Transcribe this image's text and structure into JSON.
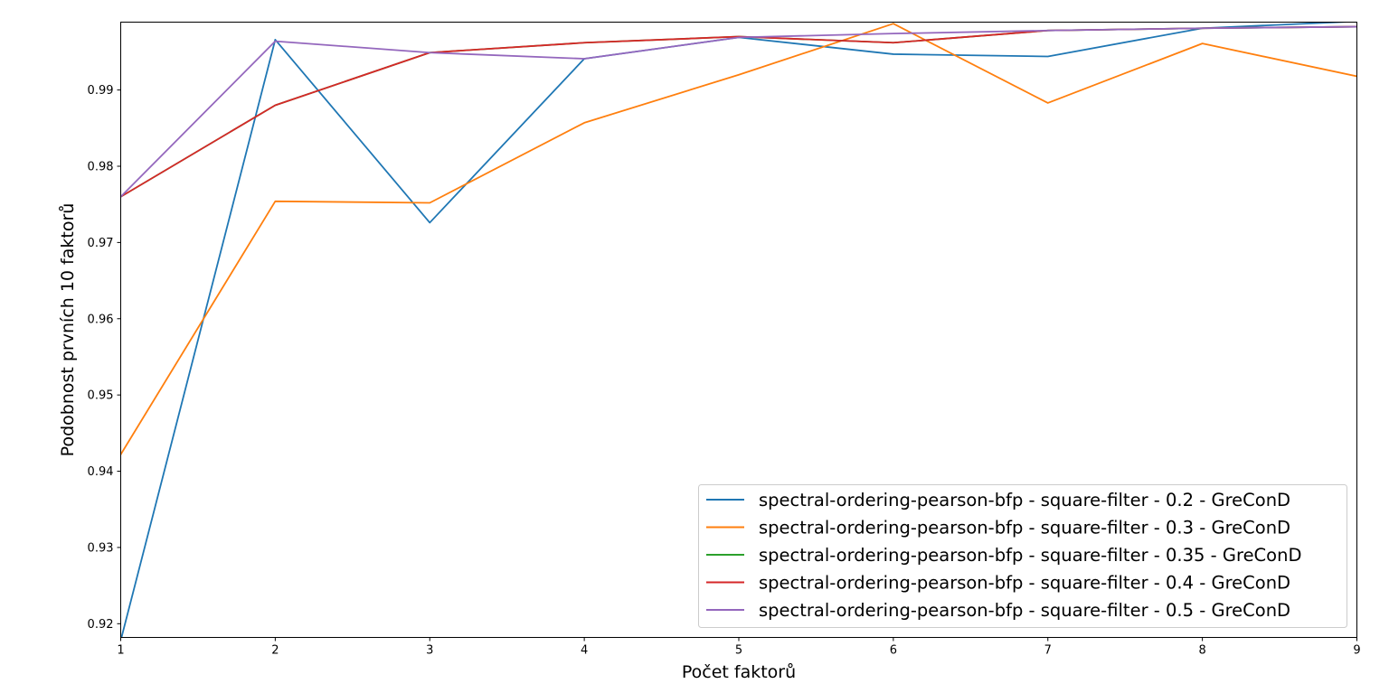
{
  "chart_data": {
    "type": "line",
    "title": "",
    "xlabel": "Počet faktorů",
    "ylabel": "Podobnost prvních 10 faktorů",
    "x": [
      1,
      2,
      3,
      4,
      5,
      6,
      7,
      8,
      9
    ],
    "xlim": [
      1,
      9
    ],
    "ylim": [
      0.9182,
      0.9989
    ],
    "xticks": [
      "1",
      "2",
      "3",
      "4",
      "5",
      "6",
      "7",
      "8",
      "9"
    ],
    "yticks": [
      0.92,
      0.93,
      0.94,
      0.95,
      0.96,
      0.97,
      0.98,
      0.99
    ],
    "ytick_labels": [
      "0.92",
      "0.93",
      "0.94",
      "0.95",
      "0.96",
      "0.97",
      "0.98",
      "0.99"
    ],
    "grid": false,
    "legend_position": "bottom-right",
    "series": [
      {
        "name": "spectral-ordering-pearson-bfp - square-filter - 0.2 - GreConD",
        "color": "#1f77b4",
        "values": [
          0.9178,
          0.9966,
          0.9726,
          0.9941,
          0.9969,
          0.9947,
          0.9944,
          0.9981,
          0.999
        ]
      },
      {
        "name": "spectral-ordering-pearson-bfp - square-filter - 0.3 - GreConD",
        "color": "#ff7f0e",
        "values": [
          0.9422,
          0.9754,
          0.9752,
          0.9857,
          0.992,
          0.9987,
          0.9883,
          0.9961,
          0.9918
        ]
      },
      {
        "name": "spectral-ordering-pearson-bfp - square-filter - 0.35 - GreConD",
        "color": "#2ca02c",
        "values": [
          0.976,
          0.988,
          0.9949,
          0.9962,
          0.997,
          0.9962,
          0.9978,
          0.9981,
          0.9983
        ]
      },
      {
        "name": "spectral-ordering-pearson-bfp - square-filter - 0.4 - GreConD",
        "color": "#d62728",
        "values": [
          0.976,
          0.988,
          0.9949,
          0.9962,
          0.997,
          0.9962,
          0.9978,
          0.9981,
          0.9983
        ]
      },
      {
        "name": "spectral-ordering-pearson-bfp - square-filter - 0.5 - GreConD",
        "color": "#9467bd",
        "values": [
          0.976,
          0.9964,
          0.9949,
          0.9941,
          0.9969,
          0.9974,
          0.9978,
          0.9981,
          0.9983
        ]
      }
    ]
  }
}
